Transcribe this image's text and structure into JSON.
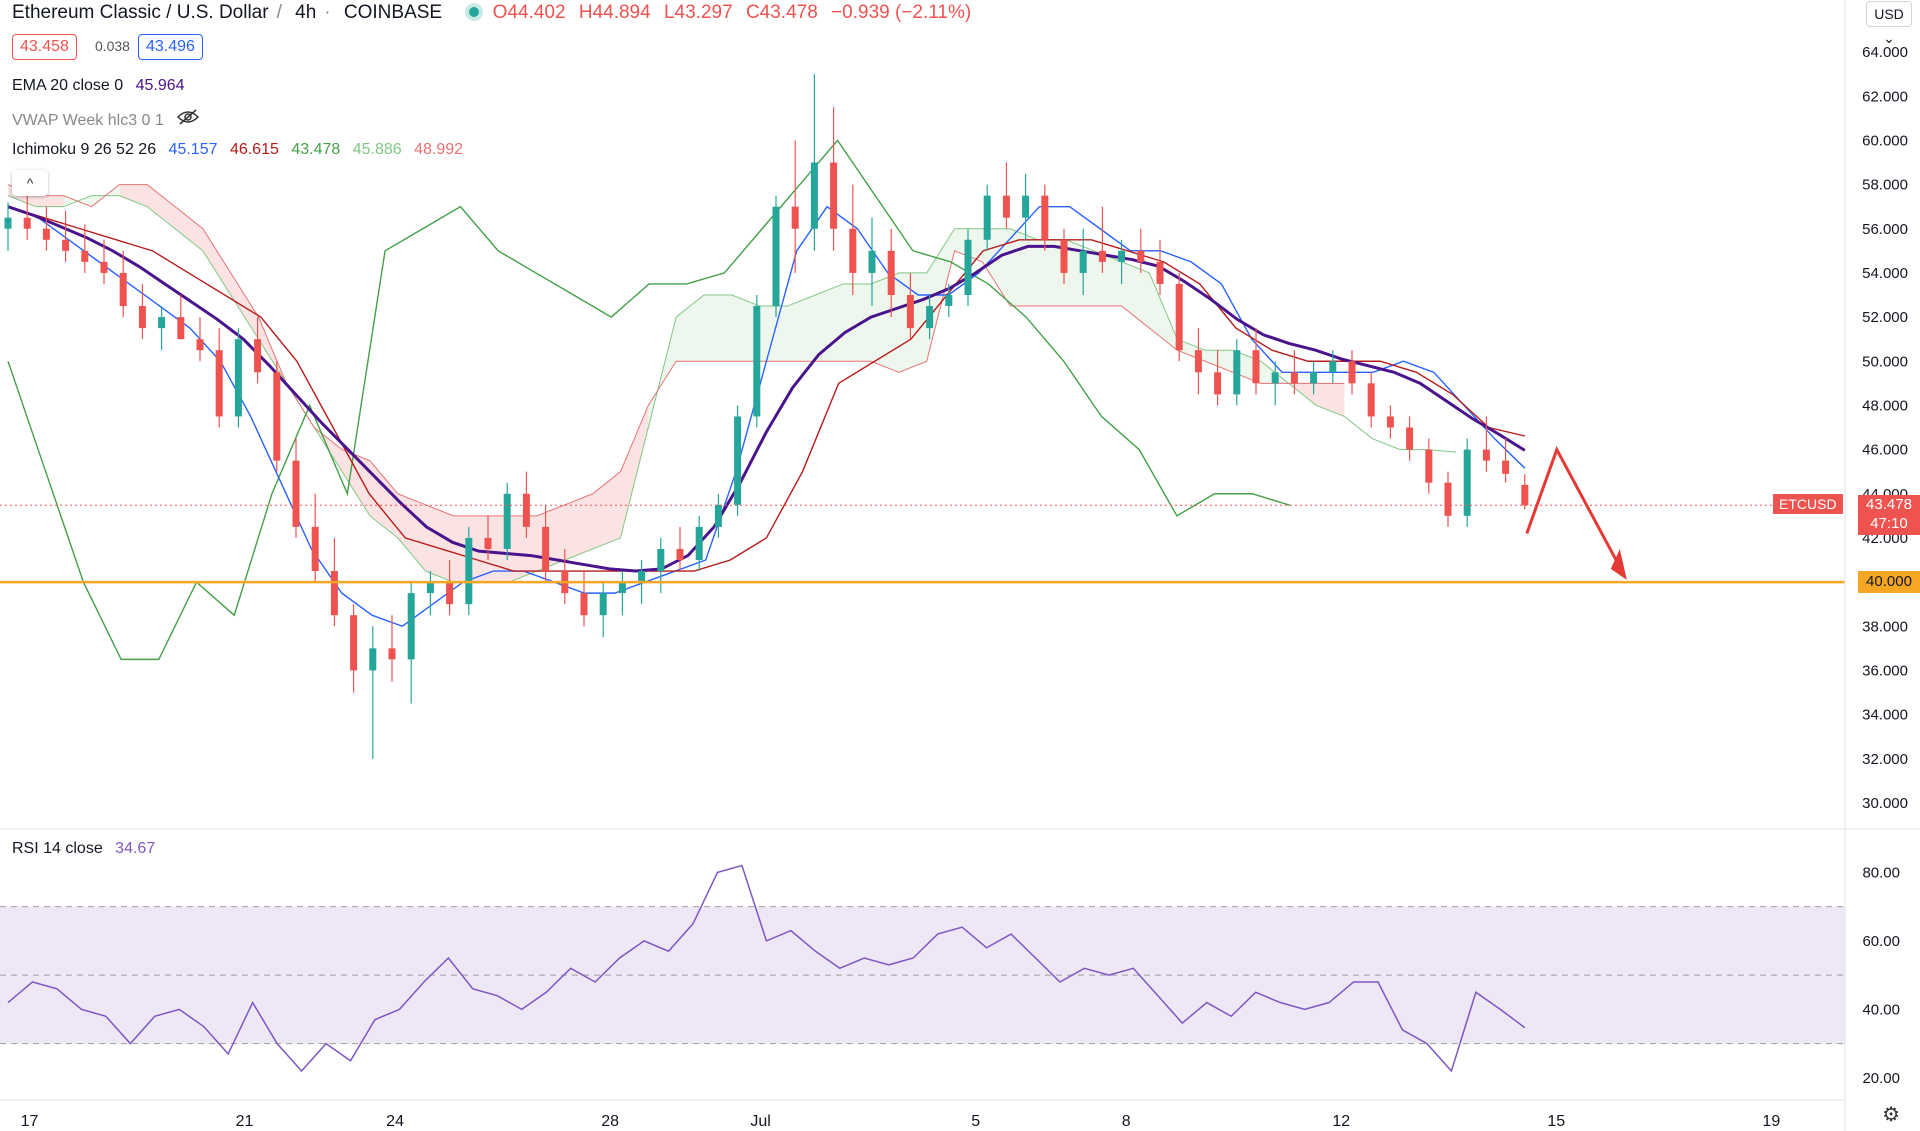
{
  "header": {
    "symbol": "Ethereum Classic / U.S. Dollar",
    "interval": "4h",
    "exchange": "COINBASE",
    "open": "O44.402",
    "high": "H44.894",
    "low": "L43.297",
    "close": "C43.478",
    "change": "−0.939 (−2.11%)",
    "bid": "43.458",
    "spread": "0.038",
    "ask": "43.496",
    "currency": "USD"
  },
  "indicators": {
    "ema": {
      "name": "EMA 20 close 0",
      "value": "45.964",
      "color": "#4a148c"
    },
    "vwap": {
      "name": "VWAP Week hlc3 0 1"
    },
    "ichimoku": {
      "name": "Ichimoku 9 26 52 26",
      "conversion": "45.157",
      "base": "46.615",
      "lagging": "43.478",
      "span_a": "45.886",
      "span_b": "48.992",
      "colors": {
        "conversion": "#2962ff",
        "base": "#b71c1c",
        "lagging": "#43a047",
        "span_a": "#81c784",
        "span_b": "#e57373"
      }
    },
    "rsi": {
      "name": "RSI 14 close",
      "value": "34.67",
      "color": "#7e57c2"
    }
  },
  "price_axis": {
    "ticks": [
      "64.000",
      "62.000",
      "60.000",
      "58.000",
      "56.000",
      "54.000",
      "52.000",
      "50.000",
      "48.000",
      "46.000",
      "44.000",
      "42.000",
      "40.000",
      "38.000",
      "36.000",
      "34.000",
      "32.000",
      "30.000"
    ],
    "last_price_label": "43.478",
    "countdown": "47:10",
    "symbol_tag": "ETCUSD",
    "support_level_label": "40.000"
  },
  "rsi_axis": {
    "ticks": [
      "80.00",
      "60.00",
      "40.00",
      "20.00"
    ]
  },
  "time_axis": {
    "labels": [
      "17",
      "21",
      "24",
      "28",
      "Jul",
      "5",
      "8",
      "12",
      "15",
      "19"
    ]
  },
  "colors": {
    "up": "#26a69a",
    "down": "#ef5350",
    "support": "#f5a623",
    "arrow": "#e53935",
    "rsi_band": "#ede7f6"
  },
  "chart_data": {
    "type": "candlestick",
    "price_range": [
      29,
      65
    ],
    "rsi_range": [
      15,
      88
    ],
    "rsi_bands": [
      30,
      50,
      70
    ],
    "support_level": 40.0,
    "candles": [
      [
        56,
        57.2,
        55,
        56.5
      ],
      [
        56.5,
        57.5,
        55.5,
        56
      ],
      [
        56,
        57,
        55,
        55.5
      ],
      [
        55.5,
        56.8,
        54.5,
        55
      ],
      [
        55,
        56.2,
        54,
        54.5
      ],
      [
        54.5,
        55.5,
        53.5,
        54
      ],
      [
        54,
        55,
        52,
        52.5
      ],
      [
        52.5,
        53.5,
        51,
        51.5
      ],
      [
        51.5,
        52.5,
        50.5,
        52
      ],
      [
        52,
        53,
        51,
        51
      ],
      [
        51,
        52,
        50,
        50.5
      ],
      [
        50.5,
        51.5,
        47,
        47.5
      ],
      [
        47.5,
        51.5,
        47,
        51
      ],
      [
        51,
        52,
        49,
        49.5
      ],
      [
        49.5,
        50,
        45,
        45.5
      ],
      [
        45.5,
        46.5,
        42,
        42.5
      ],
      [
        42.5,
        44,
        40,
        40.5
      ],
      [
        40.5,
        42,
        38,
        38.5
      ],
      [
        38.5,
        39,
        35,
        36
      ],
      [
        36,
        38,
        32,
        37
      ],
      [
        37,
        38.5,
        35.5,
        36.5
      ],
      [
        36.5,
        40,
        34.5,
        39.5
      ],
      [
        39.5,
        40.5,
        38.5,
        40
      ],
      [
        40,
        41,
        38.5,
        39
      ],
      [
        39,
        42.5,
        38.5,
        42
      ],
      [
        42,
        43,
        41,
        41.5
      ],
      [
        41.5,
        44.5,
        41,
        44
      ],
      [
        44,
        45,
        42,
        42.5
      ],
      [
        42.5,
        43.5,
        40,
        40.5
      ],
      [
        40.5,
        41.5,
        39,
        39.5
      ],
      [
        39.5,
        40.5,
        38,
        38.5
      ],
      [
        38.5,
        40,
        37.5,
        39.5
      ],
      [
        39.5,
        40.5,
        38.5,
        40
      ],
      [
        40,
        41,
        39,
        40.5
      ],
      [
        40.5,
        42,
        39.5,
        41.5
      ],
      [
        41.5,
        42.5,
        40.5,
        41
      ],
      [
        41,
        43,
        40.5,
        42.5
      ],
      [
        42.5,
        44,
        42,
        43.5
      ],
      [
        43.5,
        48,
        43,
        47.5
      ],
      [
        47.5,
        53,
        47,
        52.5
      ],
      [
        52.5,
        57.5,
        52,
        57
      ],
      [
        57,
        60,
        54,
        56
      ],
      [
        56,
        63,
        55,
        59
      ],
      [
        59,
        61.5,
        55,
        56
      ],
      [
        56,
        58,
        53,
        54
      ],
      [
        54,
        56.5,
        52.5,
        55
      ],
      [
        55,
        56,
        52,
        53
      ],
      [
        53,
        54,
        51,
        51.5
      ],
      [
        51.5,
        53,
        51,
        52.5
      ],
      [
        52.5,
        53.5,
        52,
        53
      ],
      [
        53,
        56,
        52.5,
        55.5
      ],
      [
        55.5,
        58,
        55,
        57.5
      ],
      [
        57.5,
        59,
        56,
        56.5
      ],
      [
        56.5,
        58.5,
        55.5,
        57.5
      ],
      [
        57.5,
        58,
        55,
        55.5
      ],
      [
        55.5,
        56,
        53.5,
        54
      ],
      [
        54,
        56,
        53,
        55
      ],
      [
        55,
        57,
        54,
        54.5
      ],
      [
        54.5,
        55.5,
        53.5,
        55
      ],
      [
        55,
        56,
        54,
        54.5
      ],
      [
        54.5,
        55.5,
        53,
        53.5
      ],
      [
        53.5,
        54,
        50,
        50.5
      ],
      [
        50.5,
        51.5,
        48.5,
        49.5
      ],
      [
        49.5,
        50.5,
        48,
        48.5
      ],
      [
        48.5,
        51,
        48,
        50.5
      ],
      [
        50.5,
        51.5,
        48.5,
        49
      ],
      [
        49,
        50,
        48,
        49.5
      ],
      [
        49.5,
        50.5,
        48.5,
        49
      ],
      [
        49,
        50,
        48.5,
        49.5
      ],
      [
        49.5,
        50.5,
        49,
        50
      ],
      [
        50,
        50.5,
        48.5,
        49
      ],
      [
        49,
        49.5,
        47,
        47.5
      ],
      [
        47.5,
        48,
        46.5,
        47
      ],
      [
        47,
        47.5,
        45.5,
        46
      ],
      [
        46,
        46.5,
        44,
        44.5
      ],
      [
        44.5,
        45,
        42.5,
        43
      ],
      [
        43,
        46.5,
        42.5,
        46
      ],
      [
        46,
        47.5,
        45,
        45.5
      ],
      [
        45.5,
        46.5,
        44.5,
        44.9
      ],
      [
        44.402,
        44.894,
        43.297,
        43.478
      ]
    ],
    "ema": [
      57,
      56.6,
      56.1,
      55.6,
      55,
      54.3,
      53.5,
      52.7,
      51.9,
      51,
      49.8,
      48.5,
      47.2,
      46,
      44.8,
      43.6,
      42.5,
      41.8,
      41.4,
      41.3,
      41.2,
      41,
      40.8,
      40.6,
      40.5,
      40.6,
      41.2,
      42.5,
      44.5,
      46.8,
      48.8,
      50.3,
      51.3,
      52,
      52.4,
      52.8,
      53.3,
      54,
      54.8,
      55.2,
      55.2,
      55,
      54.8,
      54.6,
      54.3,
      53.6,
      52.8,
      51.9,
      51.2,
      50.8,
      50.5,
      50.1,
      49.8,
      49.5,
      49,
      48.2,
      47.4,
      46.7,
      45.964
    ],
    "ichimoku": {
      "conversion": [
        57,
        56.5,
        55.5,
        54.5,
        53.5,
        52.5,
        51.5,
        50,
        47.5,
        44.5,
        41.5,
        39.5,
        38.5,
        38,
        39,
        40,
        40.5,
        40.5,
        40,
        39.5,
        39.5,
        40,
        40.5,
        41,
        45,
        50,
        55,
        57,
        56,
        54,
        53,
        53,
        54,
        55.5,
        57,
        57,
        56,
        55,
        55,
        54.5,
        53.5,
        51,
        49.5,
        49.5,
        49.5,
        49.5,
        50,
        49.5,
        48,
        46.5,
        45.157
      ],
      "base": [
        57,
        56.5,
        56,
        55.5,
        55,
        54,
        53,
        52,
        50,
        47,
        44,
        42,
        41.5,
        41,
        40.5,
        40.5,
        40.5,
        40.5,
        40.5,
        40.5,
        41,
        42,
        45,
        49,
        50,
        51,
        53,
        55,
        55.5,
        55.5,
        55.5,
        55,
        54.5,
        53.5,
        51.5,
        50.5,
        50,
        50,
        50,
        49.5,
        48.5,
        47,
        46.615
      ],
      "lagging": [
        50,
        45,
        40,
        36.5,
        36.5,
        40,
        38.5,
        44,
        48,
        44,
        55,
        56,
        57,
        55,
        54,
        53,
        52,
        53.5,
        53.5,
        54,
        56,
        58,
        60,
        57.5,
        55,
        54.5,
        53.5,
        52,
        50,
        47.5,
        46,
        43,
        44,
        44,
        43.478
      ],
      "span_a": [
        57.5,
        57,
        57,
        57.5,
        57.5,
        57,
        56,
        55,
        53,
        51,
        49,
        47,
        45,
        43,
        42,
        40.5,
        40,
        40,
        40,
        40.5,
        41,
        41.5,
        42,
        47,
        52,
        53,
        53,
        52.5,
        52.5,
        53,
        53.5,
        53.5,
        54,
        54,
        56,
        56,
        56,
        55.5,
        55.5,
        55,
        54.5,
        54,
        51,
        50.5,
        50.5,
        50,
        49,
        48,
        47.5,
        46.5,
        46,
        46,
        45.886
      ],
      "span_b": [
        58,
        57.5,
        57.5,
        57,
        58,
        58,
        57,
        56,
        54,
        52,
        49,
        47,
        46,
        45.5,
        44,
        43.5,
        43,
        43,
        43,
        43,
        43.5,
        44,
        45,
        48,
        50,
        50,
        50,
        50,
        50,
        50,
        50,
        50,
        49.5,
        50,
        55,
        54.5,
        52.5,
        52.5,
        52.5,
        52.5,
        52.5,
        51.5,
        50.5,
        50,
        49.5,
        49,
        49,
        49,
        48.992
      ]
    },
    "rsi": [
      42,
      48,
      46,
      40,
      38,
      30,
      38,
      40,
      35,
      27,
      42,
      30,
      22,
      30,
      25,
      37,
      40,
      48,
      55,
      46,
      44,
      40,
      45,
      52,
      48,
      55,
      60,
      57,
      65,
      80,
      82,
      60,
      63,
      57,
      52,
      55,
      53,
      55,
      62,
      64,
      58,
      62,
      55,
      48,
      52,
      50,
      52,
      44,
      36,
      42,
      38,
      45,
      42,
      40,
      42,
      48,
      48,
      34,
      30,
      22,
      45,
      40,
      34.67
    ]
  }
}
